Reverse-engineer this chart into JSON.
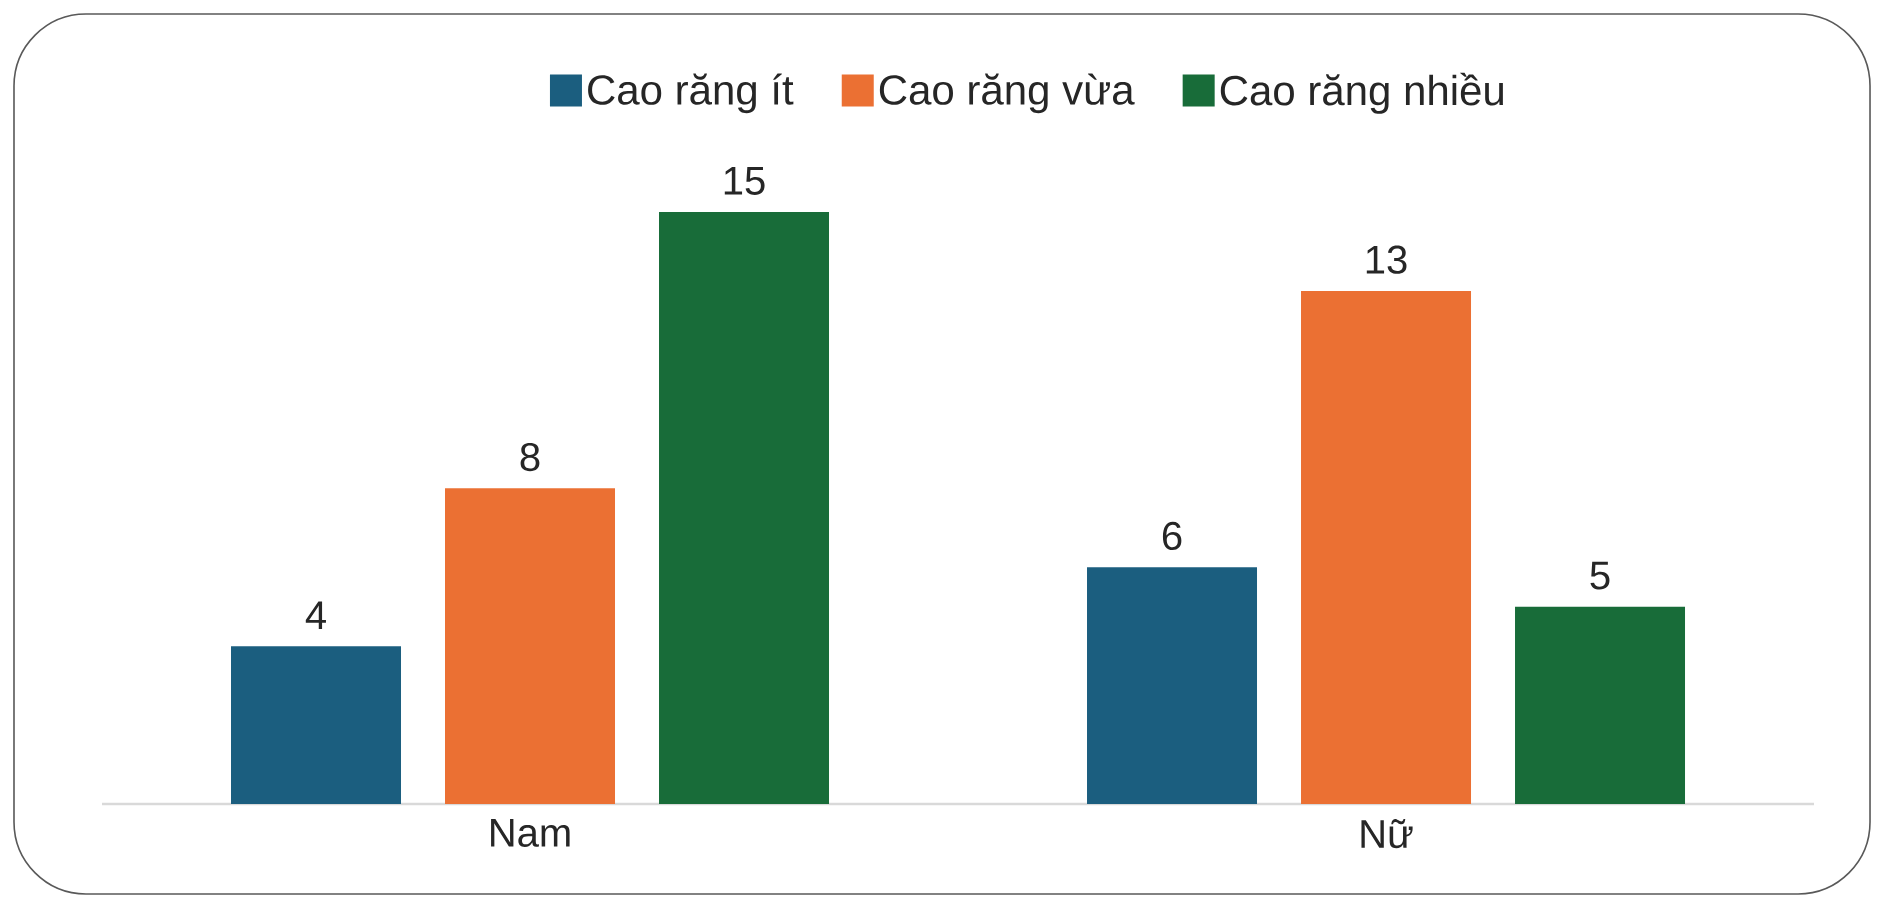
{
  "chart_data": {
    "type": "bar",
    "categories": [
      "Nam",
      "Nữ"
    ],
    "series": [
      {
        "name": "Cao răng ít",
        "color": "#1b5e7f",
        "values": [
          4,
          6
        ]
      },
      {
        "name": "Cao răng vừa",
        "color": "#eb7033",
        "values": [
          8,
          13
        ]
      },
      {
        "name": "Cao răng nhiều",
        "color": "#186c39",
        "values": [
          15,
          5
        ]
      }
    ],
    "data_labels": true,
    "legend": "top"
  }
}
